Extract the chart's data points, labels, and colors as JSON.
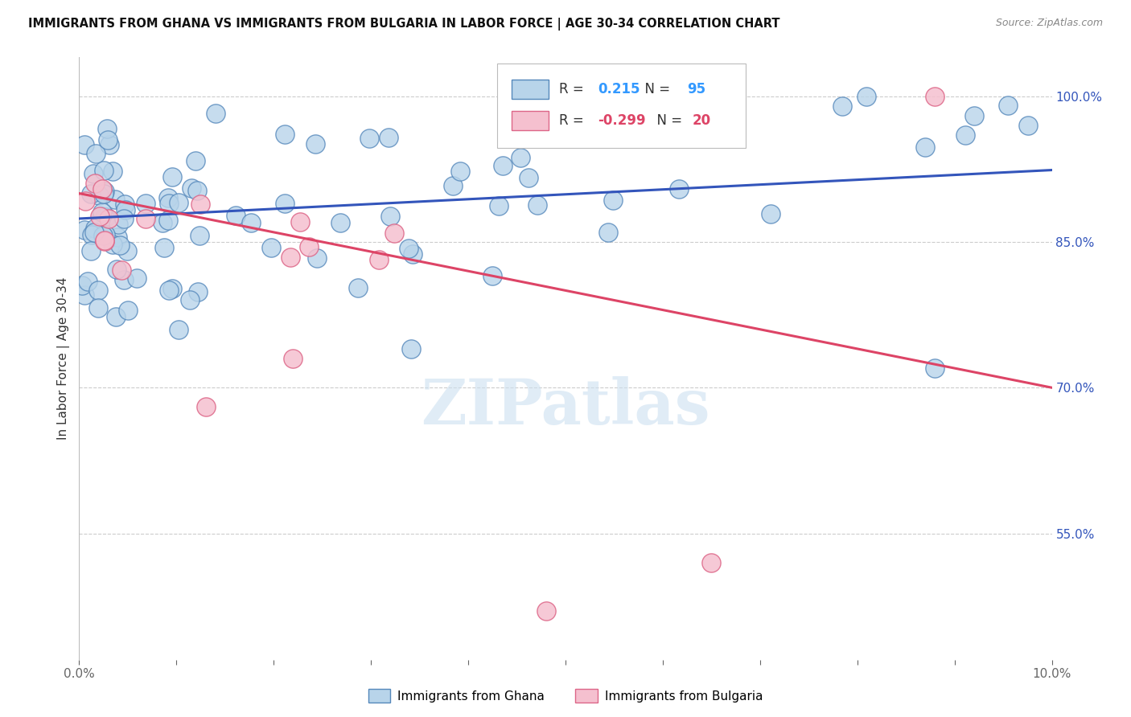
{
  "title": "IMMIGRANTS FROM GHANA VS IMMIGRANTS FROM BULGARIA IN LABOR FORCE | AGE 30-34 CORRELATION CHART",
  "source": "Source: ZipAtlas.com",
  "ylabel": "In Labor Force | Age 30-34",
  "right_yticks": [
    "100.0%",
    "85.0%",
    "70.0%",
    "55.0%"
  ],
  "right_ytick_vals": [
    1.0,
    0.85,
    0.7,
    0.55
  ],
  "xlim": [
    0.0,
    0.1
  ],
  "ylim": [
    0.42,
    1.04
  ],
  "ghana_R": "0.215",
  "ghana_N": "95",
  "bulgaria_R": "-0.299",
  "bulgaria_N": "20",
  "ghana_color": "#b8d4ea",
  "ghana_edge": "#5588bb",
  "bulgaria_color": "#f5c0cf",
  "bulgaria_edge": "#dd6688",
  "ghana_line_color": "#3355bb",
  "bulgaria_line_color": "#dd4466",
  "background_color": "#ffffff",
  "watermark": "ZIPatlas",
  "ghana_line_x": [
    0.0,
    0.1
  ],
  "ghana_line_y": [
    0.874,
    0.924
  ],
  "bulgaria_line_x": [
    0.0,
    0.1
  ],
  "bulgaria_line_y": [
    0.9,
    0.7
  ]
}
